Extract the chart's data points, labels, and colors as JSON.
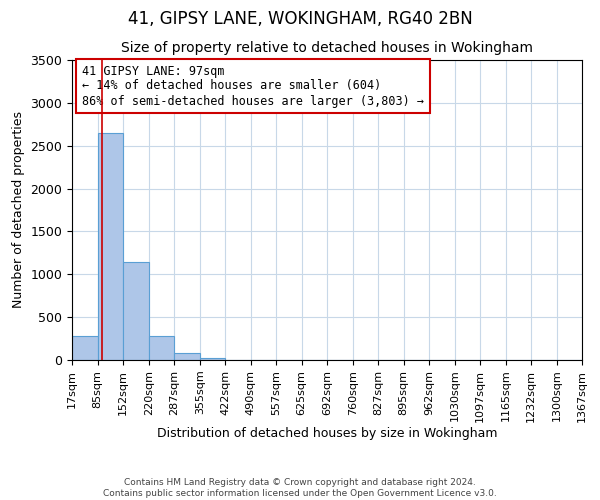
{
  "title": "41, GIPSY LANE, WOKINGHAM, RG40 2BN",
  "subtitle": "Size of property relative to detached houses in Wokingham",
  "xlabel": "Distribution of detached houses by size in Wokingham",
  "ylabel": "Number of detached properties",
  "bin_edges": [
    17,
    85,
    152,
    220,
    287,
    355,
    422,
    490,
    557,
    625,
    692,
    760,
    827,
    895,
    962,
    1030,
    1097,
    1165,
    1232,
    1300,
    1367
  ],
  "bin_labels": [
    "17sqm",
    "85sqm",
    "152sqm",
    "220sqm",
    "287sqm",
    "355sqm",
    "422sqm",
    "490sqm",
    "557sqm",
    "625sqm",
    "692sqm",
    "760sqm",
    "827sqm",
    "895sqm",
    "962sqm",
    "1030sqm",
    "1097sqm",
    "1165sqm",
    "1232sqm",
    "1300sqm",
    "1367sqm"
  ],
  "bar_heights": [
    280,
    2650,
    1140,
    280,
    80,
    25,
    0,
    0,
    0,
    0,
    0,
    0,
    0,
    0,
    0,
    0,
    0,
    0,
    0,
    0
  ],
  "bar_color": "#aec6e8",
  "bar_edge_color": "#5a9fd4",
  "property_line_x": 97,
  "property_line_color": "#cc0000",
  "ylim": [
    0,
    3500
  ],
  "yticks": [
    0,
    500,
    1000,
    1500,
    2000,
    2500,
    3000,
    3500
  ],
  "annotation_title": "41 GIPSY LANE: 97sqm",
  "annotation_line1": "← 14% of detached houses are smaller (604)",
  "annotation_line2": "86% of semi-detached houses are larger (3,803) →",
  "annotation_box_color": "#ffffff",
  "annotation_box_edge_color": "#cc0000",
  "footer_line1": "Contains HM Land Registry data © Crown copyright and database right 2024.",
  "footer_line2": "Contains public sector information licensed under the Open Government Licence v3.0.",
  "background_color": "#ffffff",
  "grid_color": "#c8d8e8",
  "title_fontsize": 12,
  "subtitle_fontsize": 10,
  "annot_fontsize": 8.5,
  "xlabel_fontsize": 9,
  "ylabel_fontsize": 9,
  "tick_fontsize": 8,
  "ytick_fontsize": 9,
  "footer_fontsize": 6.5
}
